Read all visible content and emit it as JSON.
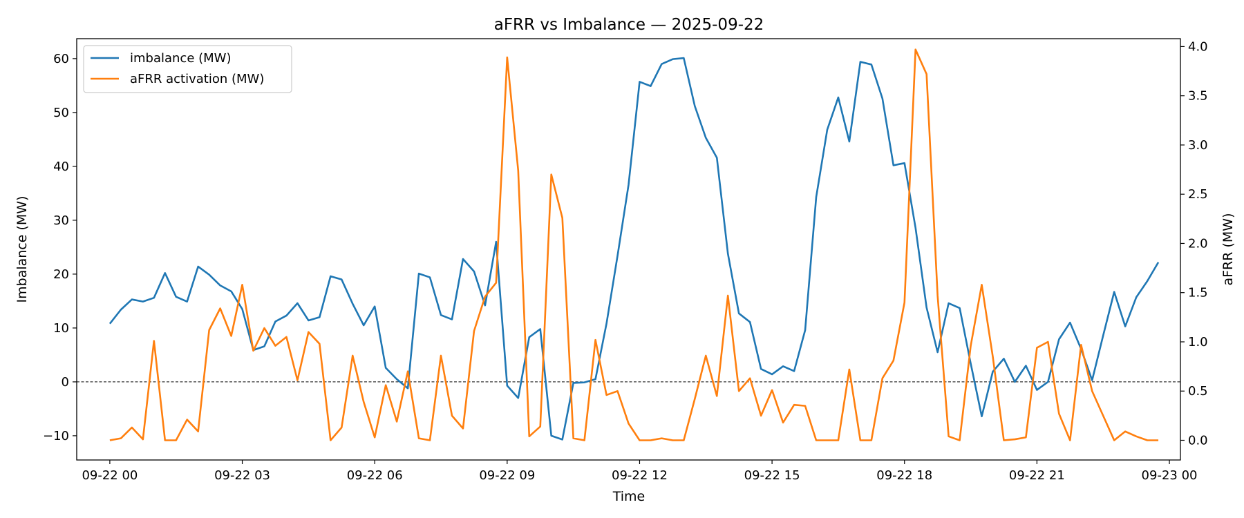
{
  "chart_data": {
    "type": "line",
    "title": "aFRR vs Imbalance — 2025-09-22",
    "xlabel": "Time",
    "ylabel_left": "Imbalance (MW)",
    "ylabel_right": "aFRR (MW)",
    "x_start": "2025-09-22 00:00",
    "x_step_minutes": 15,
    "xlim": [
      "2025-09-21 23:15",
      "2025-09-23 00:15"
    ],
    "ylim_left": [
      -14.5,
      63.7
    ],
    "ylim_right": [
      -0.2,
      4.08
    ],
    "x_ticks": [
      "09-22 00",
      "09-22 03",
      "09-22 06",
      "09-22 09",
      "09-22 12",
      "09-22 15",
      "09-22 18",
      "09-22 21",
      "09-23 00"
    ],
    "y_ticks_left": [
      "−10",
      "0",
      "10",
      "20",
      "30",
      "40",
      "50",
      "60"
    ],
    "y_ticks_right": [
      "0.0",
      "0.5",
      "1.0",
      "1.5",
      "2.0",
      "2.5",
      "3.0",
      "3.5",
      "4.0"
    ],
    "reference_line": {
      "y": 0,
      "axis": "left",
      "style": "dashed"
    },
    "legend_position": "upper left",
    "grid": false,
    "series": [
      {
        "name": "imbalance (MW)",
        "axis": "left",
        "color": "#1f77b4",
        "values": [
          10.8,
          13.4,
          15.3,
          14.9,
          15.6,
          20.2,
          15.8,
          14.9,
          21.4,
          19.9,
          17.9,
          16.8,
          13.5,
          5.9,
          6.6,
          11.2,
          12.3,
          14.6,
          11.4,
          12.0,
          19.6,
          19.0,
          14.5,
          10.5,
          14.0,
          2.6,
          0.5,
          -1.2,
          20.1,
          19.4,
          12.4,
          11.6,
          22.8,
          20.5,
          14.2,
          26.0,
          -0.7,
          -3.0,
          8.3,
          9.8,
          -10.0,
          -10.7,
          -0.2,
          -0.1,
          0.5,
          10.8,
          23.4,
          36.6,
          55.7,
          54.9,
          59.0,
          59.9,
          60.1,
          51.2,
          45.3,
          41.6,
          23.8,
          12.7,
          11.1,
          2.4,
          1.4,
          2.9,
          2.0,
          9.6,
          34.3,
          46.8,
          52.8,
          44.6,
          59.4,
          58.9,
          52.6,
          40.2,
          40.6,
          28.6,
          13.8,
          5.5,
          14.6,
          13.7,
          3.4,
          -6.4,
          1.9,
          4.3,
          0.0,
          3.0,
          -1.5,
          0.0,
          7.9,
          11.0,
          6.1,
          0.3,
          8.6,
          16.7,
          10.3,
          15.7,
          18.7,
          22.2
        ]
      },
      {
        "name": "aFRR activation (MW)",
        "axis": "right",
        "color": "#ff7f0e",
        "values": [
          0.0,
          0.02,
          0.13,
          0.01,
          1.01,
          0.0,
          0.0,
          0.21,
          0.09,
          1.12,
          1.34,
          1.06,
          1.58,
          0.91,
          1.14,
          0.96,
          1.05,
          0.61,
          1.1,
          0.98,
          0.0,
          0.13,
          0.86,
          0.39,
          0.03,
          0.56,
          0.19,
          0.7,
          0.02,
          0.0,
          0.86,
          0.25,
          0.12,
          1.11,
          1.46,
          1.6,
          3.89,
          2.74,
          0.04,
          0.14,
          2.7,
          2.26,
          0.02,
          0.0,
          1.02,
          0.46,
          0.5,
          0.17,
          0.0,
          0.0,
          0.02,
          0.0,
          0.0,
          0.42,
          0.86,
          0.45,
          1.47,
          0.5,
          0.63,
          0.25,
          0.51,
          0.18,
          0.36,
          0.35,
          0.0,
          0.0,
          0.0,
          0.72,
          0.0,
          0.0,
          0.63,
          0.81,
          1.4,
          3.97,
          3.72,
          1.47,
          0.04,
          0.0,
          0.96,
          1.58,
          0.85,
          0.0,
          0.01,
          0.03,
          0.94,
          1.0,
          0.27,
          0.0,
          0.97,
          0.5,
          0.25,
          0.0,
          0.09,
          0.04,
          0.0,
          0.0
        ]
      }
    ]
  }
}
